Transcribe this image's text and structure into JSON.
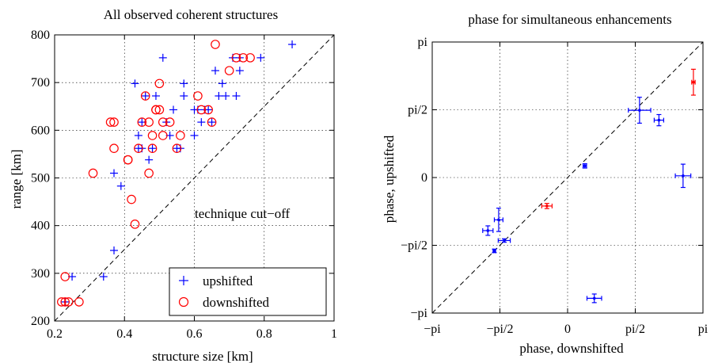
{
  "chart_data": [
    {
      "type": "scatter",
      "title": "All observed coherent structures",
      "xlabel": "structure size [km]",
      "ylabel": "range [km]",
      "xlim": [
        0.2,
        1.0
      ],
      "ylim": [
        200,
        800
      ],
      "xticks": [
        0.2,
        0.4,
        0.6,
        0.8,
        1.0
      ],
      "xtick_labels": [
        "0.2",
        "0.4",
        "0.6",
        "0.8",
        "1"
      ],
      "yticks": [
        200,
        300,
        400,
        500,
        600,
        700,
        800
      ],
      "ytick_labels": [
        "200",
        "300",
        "400",
        "500",
        "600",
        "700",
        "800"
      ],
      "grid": true,
      "annotation": "technique cut−off",
      "reference_line": {
        "x": [
          0.2,
          1.0
        ],
        "y": [
          200,
          800
        ]
      },
      "legend_position": "bottom-right",
      "series": [
        {
          "name": "upshifted",
          "marker": "+",
          "color": "#0000ff",
          "x": [
            0.23,
            0.25,
            0.34,
            0.37,
            0.37,
            0.39,
            0.43,
            0.44,
            0.44,
            0.45,
            0.45,
            0.46,
            0.47,
            0.48,
            0.49,
            0.51,
            0.52,
            0.53,
            0.54,
            0.55,
            0.56,
            0.57,
            0.57,
            0.6,
            0.6,
            0.61,
            0.62,
            0.63,
            0.64,
            0.65,
            0.66,
            0.67,
            0.68,
            0.69,
            0.71,
            0.72,
            0.73,
            0.73,
            0.79,
            0.88
          ],
          "y": [
            240,
            293,
            293,
            348,
            510,
            483,
            698,
            562,
            589,
            617,
            562,
            672,
            538,
            562,
            672,
            752,
            617,
            589,
            643,
            562,
            562,
            672,
            698,
            643,
            589,
            643,
            617,
            643,
            643,
            617,
            725,
            672,
            698,
            672,
            752,
            672,
            752,
            725,
            752,
            780
          ]
        },
        {
          "name": "downshifted",
          "marker": "o",
          "color": "#ff0000",
          "x": [
            0.22,
            0.23,
            0.23,
            0.24,
            0.27,
            0.31,
            0.36,
            0.37,
            0.37,
            0.41,
            0.41,
            0.42,
            0.43,
            0.44,
            0.45,
            0.46,
            0.47,
            0.47,
            0.48,
            0.48,
            0.49,
            0.49,
            0.5,
            0.5,
            0.51,
            0.51,
            0.53,
            0.55,
            0.56,
            0.61,
            0.62,
            0.64,
            0.65,
            0.66,
            0.7,
            0.72,
            0.74,
            0.76
          ],
          "y": [
            240,
            293,
            240,
            240,
            240,
            510,
            617,
            562,
            617,
            538,
            538,
            455,
            403,
            562,
            617,
            672,
            510,
            617,
            562,
            589,
            643,
            643,
            698,
            643,
            589,
            617,
            617,
            562,
            589,
            672,
            643,
            643,
            617,
            780,
            725,
            752,
            752,
            752
          ]
        }
      ]
    },
    {
      "type": "scatter",
      "title": "phase for simultaneous enhancements",
      "xlabel": "phase, downshifted",
      "ylabel": "phase, upshifted",
      "xlim": [
        -3.14159,
        3.14159
      ],
      "ylim": [
        -3.14159,
        3.14159
      ],
      "xticks": [
        -3.14159,
        -1.5708,
        0,
        1.5708,
        3.14159
      ],
      "xtick_labels": [
        "−pi",
        "−pi/2",
        "0",
        "pi/2",
        "pi"
      ],
      "yticks": [
        -3.14159,
        -1.5708,
        0,
        1.5708,
        3.14159
      ],
      "ytick_labels": [
        "−pi",
        "−pi/2",
        "0",
        "pi/2",
        "pi"
      ],
      "grid": true,
      "reference_line": {
        "x": [
          -3.14159,
          3.14159
        ],
        "y": [
          -3.14159,
          3.14159
        ]
      },
      "points": [
        {
          "x": -1.85,
          "y": -1.23,
          "xerr": 0.12,
          "yerr": 0.11,
          "color": "#0000ff"
        },
        {
          "x": -1.6,
          "y": -0.98,
          "xerr": 0.1,
          "yerr": 0.27,
          "color": "#0000ff"
        },
        {
          "x": -1.47,
          "y": -1.46,
          "xerr": 0.14,
          "yerr": 0.04,
          "color": "#0000ff"
        },
        {
          "x": -1.7,
          "y": -1.7,
          "xerr": 0.03,
          "yerr": 0.04,
          "color": "#0000ff"
        },
        {
          "x": 0.4,
          "y": 0.27,
          "xerr": 0.04,
          "yerr": 0.05,
          "color": "#0000ff"
        },
        {
          "x": 0.62,
          "y": -2.8,
          "xerr": 0.17,
          "yerr": 0.1,
          "color": "#0000ff"
        },
        {
          "x": 1.67,
          "y": 1.56,
          "xerr": 0.26,
          "yerr": 0.3,
          "color": "#0000ff"
        },
        {
          "x": 2.12,
          "y": 1.33,
          "xerr": 0.11,
          "yerr": 0.13,
          "color": "#0000ff"
        },
        {
          "x": 2.68,
          "y": 0.04,
          "xerr": 0.18,
          "yerr": 0.27,
          "color": "#0000ff"
        },
        {
          "x": -0.48,
          "y": -0.66,
          "xerr": 0.12,
          "yerr": 0.06,
          "color": "#ff0000"
        },
        {
          "x": 2.92,
          "y": 2.21,
          "xerr": 0.04,
          "yerr": 0.3,
          "color": "#ff0000"
        }
      ]
    }
  ],
  "legend": [
    {
      "label": "upshifted",
      "marker": "+",
      "color": "#0000ff"
    },
    {
      "label": "downshifted",
      "marker": "o",
      "color": "#ff0000"
    }
  ]
}
